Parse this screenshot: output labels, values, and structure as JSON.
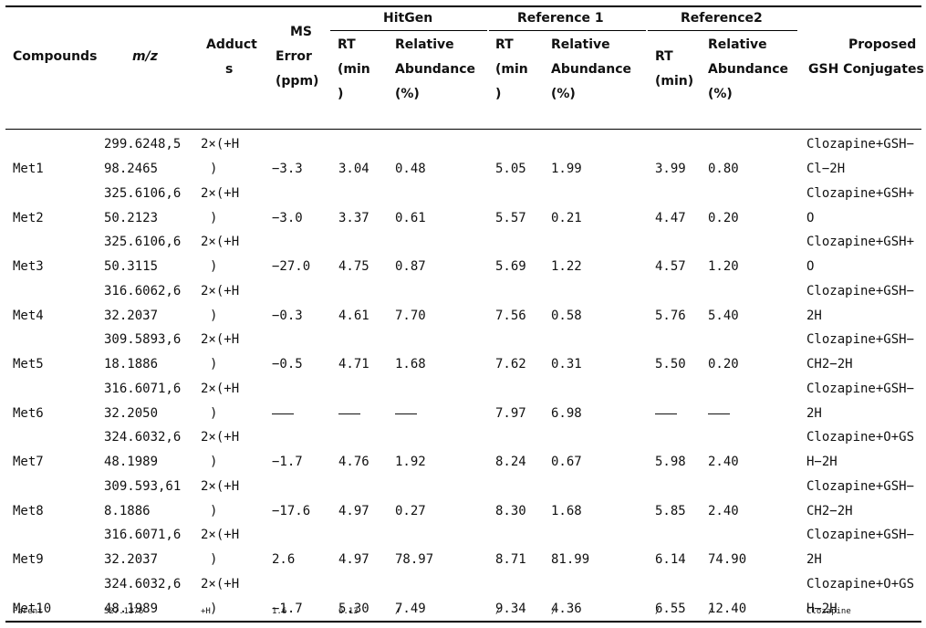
{
  "header": {
    "compounds": "Compounds",
    "mz": "m/z",
    "adducts": [
      "Adduct",
      "s"
    ],
    "ms_error": [
      "MS",
      "Error",
      "(ppm)"
    ],
    "proposed": [
      "Proposed",
      "GSH Conjugates"
    ],
    "groups": [
      "HitGen",
      "Reference 1",
      "Reference2"
    ],
    "rt_split": [
      "RT",
      "(min",
      ")"
    ],
    "rt_ref2": [
      "RT",
      "(min)"
    ],
    "rel_abund": [
      "Relative",
      "Abundance",
      "(%)"
    ]
  },
  "rows": [
    {
      "name": "Met1",
      "mz": [
        "299.6248,5",
        "98.2465"
      ],
      "adduct": [
        "2×(+H",
        ")"
      ],
      "err": "−3.3",
      "hg_rt": "3.04",
      "hg_ra": "0.48",
      "r1_rt": "5.05",
      "r1_ra": "1.99",
      "r2_rt": "3.99",
      "r2_ra": "0.80",
      "gsh": [
        "Clozapine+GSH−",
        "Cl−2H"
      ]
    },
    {
      "name": "Met2",
      "mz": [
        "325.6106,6",
        "50.2123"
      ],
      "adduct": [
        "2×(+H",
        ")"
      ],
      "err": "−3.0",
      "hg_rt": "3.37",
      "hg_ra": "0.61",
      "r1_rt": "5.57",
      "r1_ra": "0.21",
      "r2_rt": "4.47",
      "r2_ra": "0.20",
      "gsh": [
        "Clozapine+GSH+",
        "O"
      ]
    },
    {
      "name": "Met3",
      "mz": [
        "325.6106,6",
        "50.3115"
      ],
      "adduct": [
        "2×(+H",
        ")"
      ],
      "err": "−27.0",
      "hg_rt": "4.75",
      "hg_ra": "0.87",
      "r1_rt": "5.69",
      "r1_ra": "1.22",
      "r2_rt": "4.57",
      "r2_ra": "1.20",
      "gsh": [
        "Clozapine+GSH+",
        "O"
      ]
    },
    {
      "name": "Met4",
      "mz": [
        "316.6062,6",
        "32.2037"
      ],
      "adduct": [
        "2×(+H",
        ")"
      ],
      "err": "−0.3",
      "hg_rt": "4.61",
      "hg_ra": "7.70",
      "r1_rt": "7.56",
      "r1_ra": "0.58",
      "r2_rt": "5.76",
      "r2_ra": "5.40",
      "gsh": [
        "Clozapine+GSH−",
        "2H"
      ]
    },
    {
      "name": "Met5",
      "mz": [
        "309.5893,6",
        "18.1886"
      ],
      "adduct": [
        "2×(+H",
        ")"
      ],
      "err": "−0.5",
      "hg_rt": "4.71",
      "hg_ra": "1.68",
      "r1_rt": "7.62",
      "r1_ra": "0.31",
      "r2_rt": "5.50",
      "r2_ra": "0.20",
      "gsh": [
        "Clozapine+GSH−",
        "CH2−2H"
      ]
    },
    {
      "name": "Met6",
      "mz": [
        "316.6071,6",
        "32.2050"
      ],
      "adduct": [
        "2×(+H",
        ")"
      ],
      "err": "—",
      "hg_rt": "—",
      "hg_ra": "—",
      "r1_rt": "7.97",
      "r1_ra": "6.98",
      "r2_rt": "—",
      "r2_ra": "—",
      "gsh": [
        "Clozapine+GSH−",
        "2H"
      ]
    },
    {
      "name": "Met7",
      "mz": [
        "324.6032,6",
        "48.1989"
      ],
      "adduct": [
        "2×(+H",
        ")"
      ],
      "err": "−1.7",
      "hg_rt": "4.76",
      "hg_ra": "1.92",
      "r1_rt": "8.24",
      "r1_ra": "0.67",
      "r2_rt": "5.98",
      "r2_ra": "2.40",
      "gsh": [
        "Clozapine+O+GS",
        "H−2H"
      ]
    },
    {
      "name": "Met8",
      "mz": [
        "309.593,61",
        "8.1886"
      ],
      "adduct": [
        "2×(+H",
        ")"
      ],
      "err": "−17.6",
      "hg_rt": "4.97",
      "hg_ra": "0.27",
      "r1_rt": "8.30",
      "r1_ra": "1.68",
      "r2_rt": "5.85",
      "r2_ra": "2.40",
      "gsh": [
        "Clozapine+GSH−",
        "CH2−2H"
      ]
    },
    {
      "name": "Met9",
      "mz": [
        "316.6071,6",
        "32.2037"
      ],
      "adduct": [
        "2×(+H",
        ")"
      ],
      "err": "2.6",
      "hg_rt": "4.97",
      "hg_ra": "78.97",
      "r1_rt": "8.71",
      "r1_ra": "81.99",
      "r2_rt": "6.14",
      "r2_ra": "74.90",
      "gsh": [
        "Clozapine+GSH−",
        "2H"
      ]
    },
    {
      "name": "Met10",
      "mz": [
        "324.6032,6",
        "48.1989"
      ],
      "adduct": [
        "2×(+H",
        ")"
      ],
      "err": "−1.7",
      "hg_rt": "5.30",
      "hg_ra": "7.49",
      "r1_rt": "9.34",
      "r1_ra": "4.36",
      "r2_rt": "6.55",
      "r2_ra": "12.40",
      "gsh": [
        "Clozapine+O+GS",
        "H−2H"
      ]
    }
  ],
  "parent": {
    "name": "Parent",
    "mz": "327.1376",
    "adduct": "+H",
    "err": "1.6",
    "hg_rt": "6.13",
    "hg_ra": "/",
    "r1_rt": "/",
    "r1_ra": "/",
    "r2_rt": "/",
    "r2_ra": "/",
    "gsh": "Clozapine"
  }
}
